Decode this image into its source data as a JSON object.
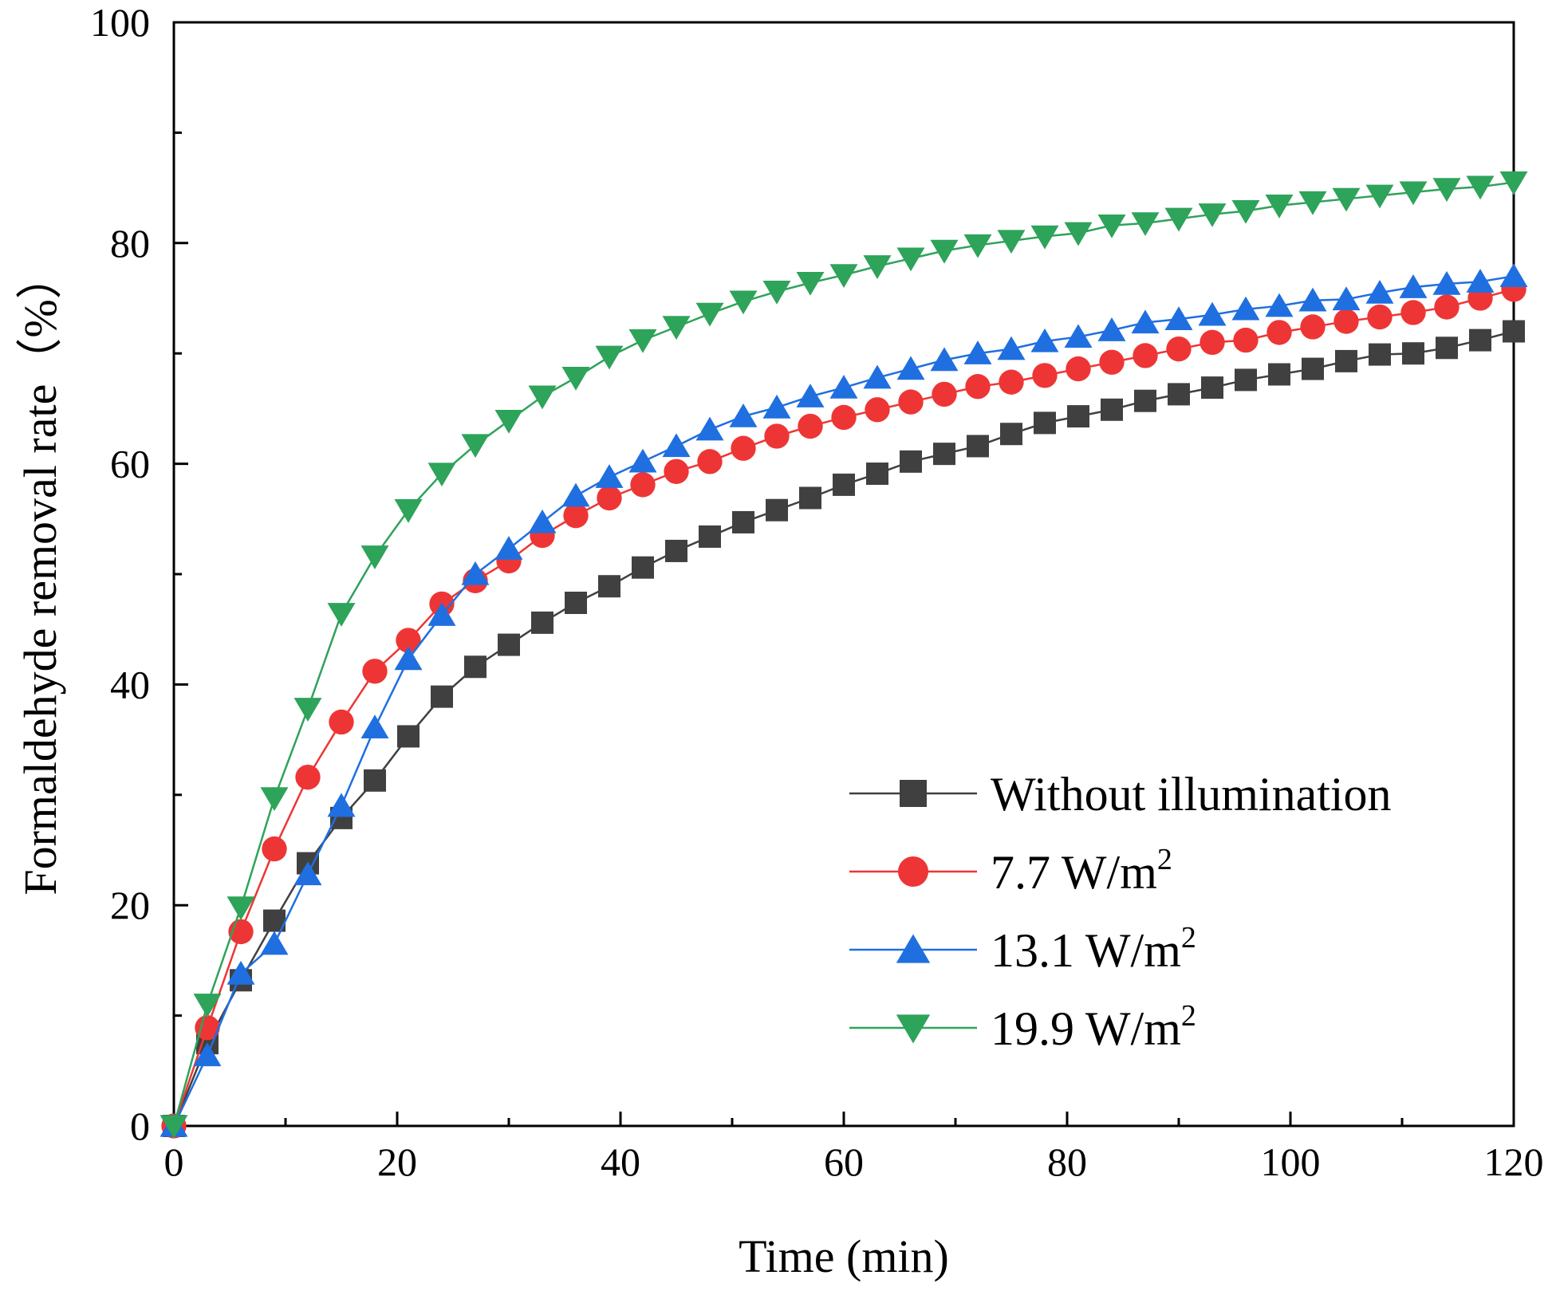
{
  "chart_data": {
    "type": "line",
    "title": "",
    "xlabel": "Time (min)",
    "ylabel": "Formaldehyde removal rate（%）",
    "xlim": [
      0,
      120
    ],
    "ylim": [
      0,
      100
    ],
    "xticks": [
      0,
      20,
      40,
      60,
      80,
      100,
      120
    ],
    "yticks": [
      0,
      20,
      40,
      60,
      80,
      100
    ],
    "grid": false,
    "legend_position": "bottom-right",
    "x": [
      0,
      3,
      6,
      9,
      12,
      15,
      18,
      21,
      24,
      27,
      30,
      33,
      36,
      39,
      42,
      45,
      48,
      51,
      54,
      57,
      60,
      63,
      66,
      69,
      72,
      75,
      78,
      81,
      84,
      87,
      90,
      93,
      96,
      99,
      102,
      105,
      108,
      111,
      114,
      117,
      120
    ],
    "series": [
      {
        "name": "Without illumination",
        "legend_base": "Without illumination",
        "legend_sup": "",
        "color": "#404040",
        "marker": "square",
        "values": [
          0,
          7.5,
          13.2,
          18.6,
          23.8,
          27.9,
          31.3,
          35.3,
          38.9,
          41.6,
          43.6,
          45.6,
          47.4,
          48.9,
          50.6,
          52.1,
          53.4,
          54.7,
          55.8,
          56.9,
          58.1,
          59.1,
          60.2,
          60.9,
          61.6,
          62.7,
          63.7,
          64.3,
          64.9,
          65.7,
          66.3,
          66.9,
          67.6,
          68.1,
          68.6,
          69.3,
          69.9,
          70.0,
          70.5,
          71.2,
          72.0
        ]
      },
      {
        "name": "7.7 W/m2",
        "legend_base": "7.7 W/m",
        "legend_sup": "2",
        "color": "#ee3535",
        "marker": "circle",
        "values": [
          0,
          8.9,
          17.6,
          25.1,
          31.6,
          36.6,
          41.2,
          44.0,
          47.3,
          49.4,
          51.2,
          53.5,
          55.3,
          56.9,
          58.1,
          59.3,
          60.2,
          61.4,
          62.5,
          63.4,
          64.2,
          64.9,
          65.6,
          66.3,
          67.0,
          67.4,
          68.0,
          68.6,
          69.2,
          69.8,
          70.4,
          71.0,
          71.2,
          71.9,
          72.4,
          72.9,
          73.3,
          73.7,
          74.2,
          75.0,
          75.8
        ]
      },
      {
        "name": "13.1 W/m2",
        "legend_base": "13.1 W/m",
        "legend_sup": "2",
        "color": "#1f6fe0",
        "marker": "triangle-up",
        "values": [
          0,
          6.4,
          13.8,
          16.5,
          22.8,
          29.0,
          36.1,
          42.3,
          46.3,
          50.0,
          52.3,
          54.7,
          57.1,
          58.8,
          60.2,
          61.6,
          63.1,
          64.3,
          65.1,
          66.1,
          66.9,
          67.8,
          68.6,
          69.4,
          70.0,
          70.4,
          71.1,
          71.5,
          72.1,
          72.8,
          73.1,
          73.5,
          74.0,
          74.3,
          74.8,
          74.9,
          75.5,
          76.0,
          76.3,
          76.5,
          77.0
        ]
      },
      {
        "name": "19.9 W/m2",
        "legend_base": "19.9 W/m",
        "legend_sup": "2",
        "color": "#2ea35a",
        "marker": "triangle-down",
        "values": [
          0,
          11.0,
          19.8,
          29.7,
          37.8,
          46.4,
          51.6,
          55.8,
          59.1,
          61.7,
          63.9,
          66.1,
          67.8,
          69.7,
          71.2,
          72.4,
          73.6,
          74.7,
          75.6,
          76.4,
          77.1,
          77.9,
          78.6,
          79.3,
          79.8,
          80.2,
          80.6,
          80.9,
          81.6,
          81.8,
          82.2,
          82.6,
          82.9,
          83.4,
          83.7,
          84.0,
          84.3,
          84.6,
          84.9,
          85.1,
          85.5
        ]
      }
    ]
  }
}
